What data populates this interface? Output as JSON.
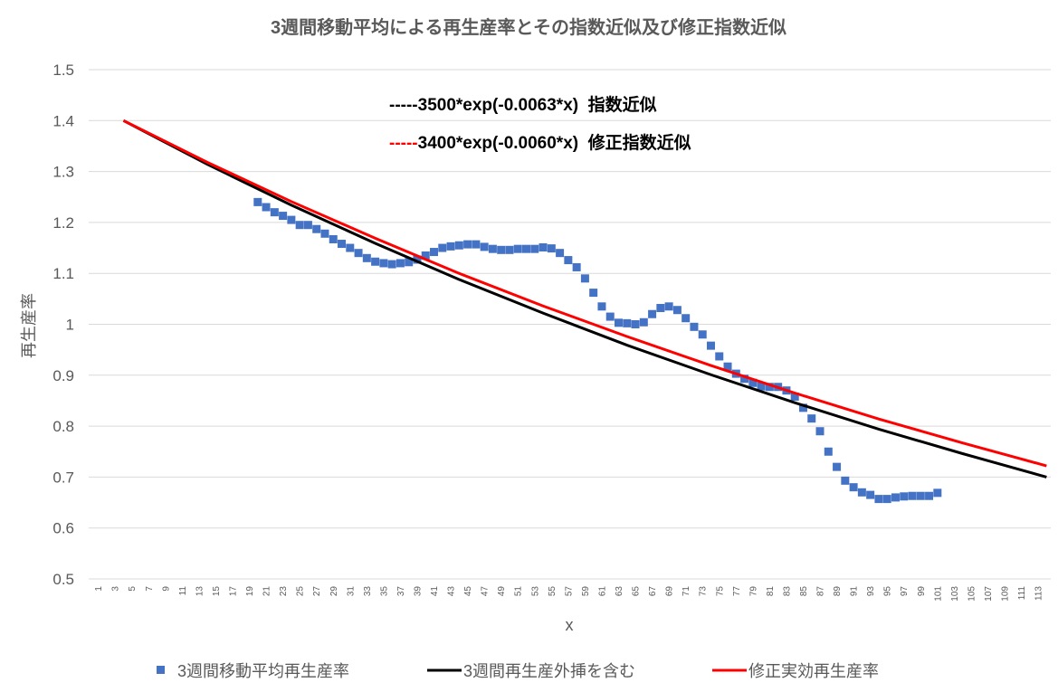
{
  "chart_data": {
    "type": "line",
    "title": "3週間移動平均による再生産率とその指数近似及び修正指数近似",
    "xlabel": "x",
    "ylabel": "再生産率",
    "ylim": [
      0.5,
      1.5
    ],
    "yticks": [
      "0.5",
      "0.6",
      "0.7",
      "0.8",
      "0.9",
      "1",
      "1.1",
      "1.2",
      "1.3",
      "1.4",
      "1.5"
    ],
    "x_categories_count": 114,
    "grid": true,
    "legend": "bottom",
    "annotations": [
      {
        "prefix": "-----",
        "text": "3500*exp(-0.0063*x)  指数近似",
        "color": "#000000"
      },
      {
        "prefix": "-----",
        "text": "3400*exp(-0.0060*x)  修正指数近似",
        "color": "#FF0000"
      }
    ],
    "series": [
      {
        "name": "3週間移動平均再生産率",
        "kind": "scatter",
        "color": "#4472C4",
        "x": [
          20,
          21,
          22,
          23,
          24,
          25,
          26,
          27,
          28,
          29,
          30,
          31,
          32,
          33,
          34,
          35,
          36,
          37,
          38,
          39,
          40,
          41,
          42,
          43,
          44,
          45,
          46,
          47,
          48,
          49,
          50,
          51,
          52,
          53,
          54,
          55,
          56,
          57,
          58,
          59,
          60,
          61,
          62,
          63,
          64,
          65,
          66,
          67,
          68,
          69,
          70,
          71,
          72,
          73,
          74,
          75,
          76,
          77,
          78,
          79,
          80,
          81,
          82,
          83,
          84,
          85,
          86,
          87,
          88,
          89,
          90,
          91,
          92,
          93,
          94,
          95,
          96,
          97,
          98,
          99,
          100,
          101
        ],
        "y": [
          1.24,
          1.23,
          1.22,
          1.213,
          1.205,
          1.195,
          1.195,
          1.187,
          1.178,
          1.167,
          1.158,
          1.15,
          1.14,
          1.13,
          1.123,
          1.12,
          1.118,
          1.12,
          1.122,
          1.127,
          1.135,
          1.142,
          1.15,
          1.153,
          1.155,
          1.157,
          1.157,
          1.152,
          1.148,
          1.146,
          1.146,
          1.148,
          1.148,
          1.148,
          1.151,
          1.149,
          1.14,
          1.126,
          1.112,
          1.09,
          1.062,
          1.035,
          1.015,
          1.003,
          1.002,
          1.0,
          1.004,
          1.02,
          1.032,
          1.035,
          1.028,
          1.012,
          0.995,
          0.98,
          0.958,
          0.937,
          0.917,
          0.903,
          0.893,
          0.885,
          0.878,
          0.877,
          0.877,
          0.87,
          0.858,
          0.836,
          0.815,
          0.79,
          0.75,
          0.72,
          0.693,
          0.68,
          0.67,
          0.665,
          0.657,
          0.657,
          0.66,
          0.662,
          0.663,
          0.663,
          0.663,
          0.669
        ]
      },
      {
        "name": "3週間再生産外挿を含む",
        "kind": "line",
        "color": "#000000",
        "x": [
          4,
          14,
          24,
          34,
          44,
          54,
          64,
          74,
          84,
          94,
          104,
          114
        ],
        "y": [
          1.4,
          1.314,
          1.234,
          1.159,
          1.088,
          1.022,
          0.959,
          0.901,
          0.846,
          0.794,
          0.746,
          0.7
        ]
      },
      {
        "name": "修正実効再生産率",
        "kind": "line",
        "color": "#FF0000",
        "x": [
          4,
          14,
          24,
          34,
          44,
          54,
          64,
          74,
          84,
          94,
          104,
          114
        ],
        "y": [
          1.4,
          1.318,
          1.241,
          1.169,
          1.1,
          1.036,
          0.976,
          0.919,
          0.865,
          0.814,
          0.767,
          0.722
        ]
      }
    ]
  }
}
